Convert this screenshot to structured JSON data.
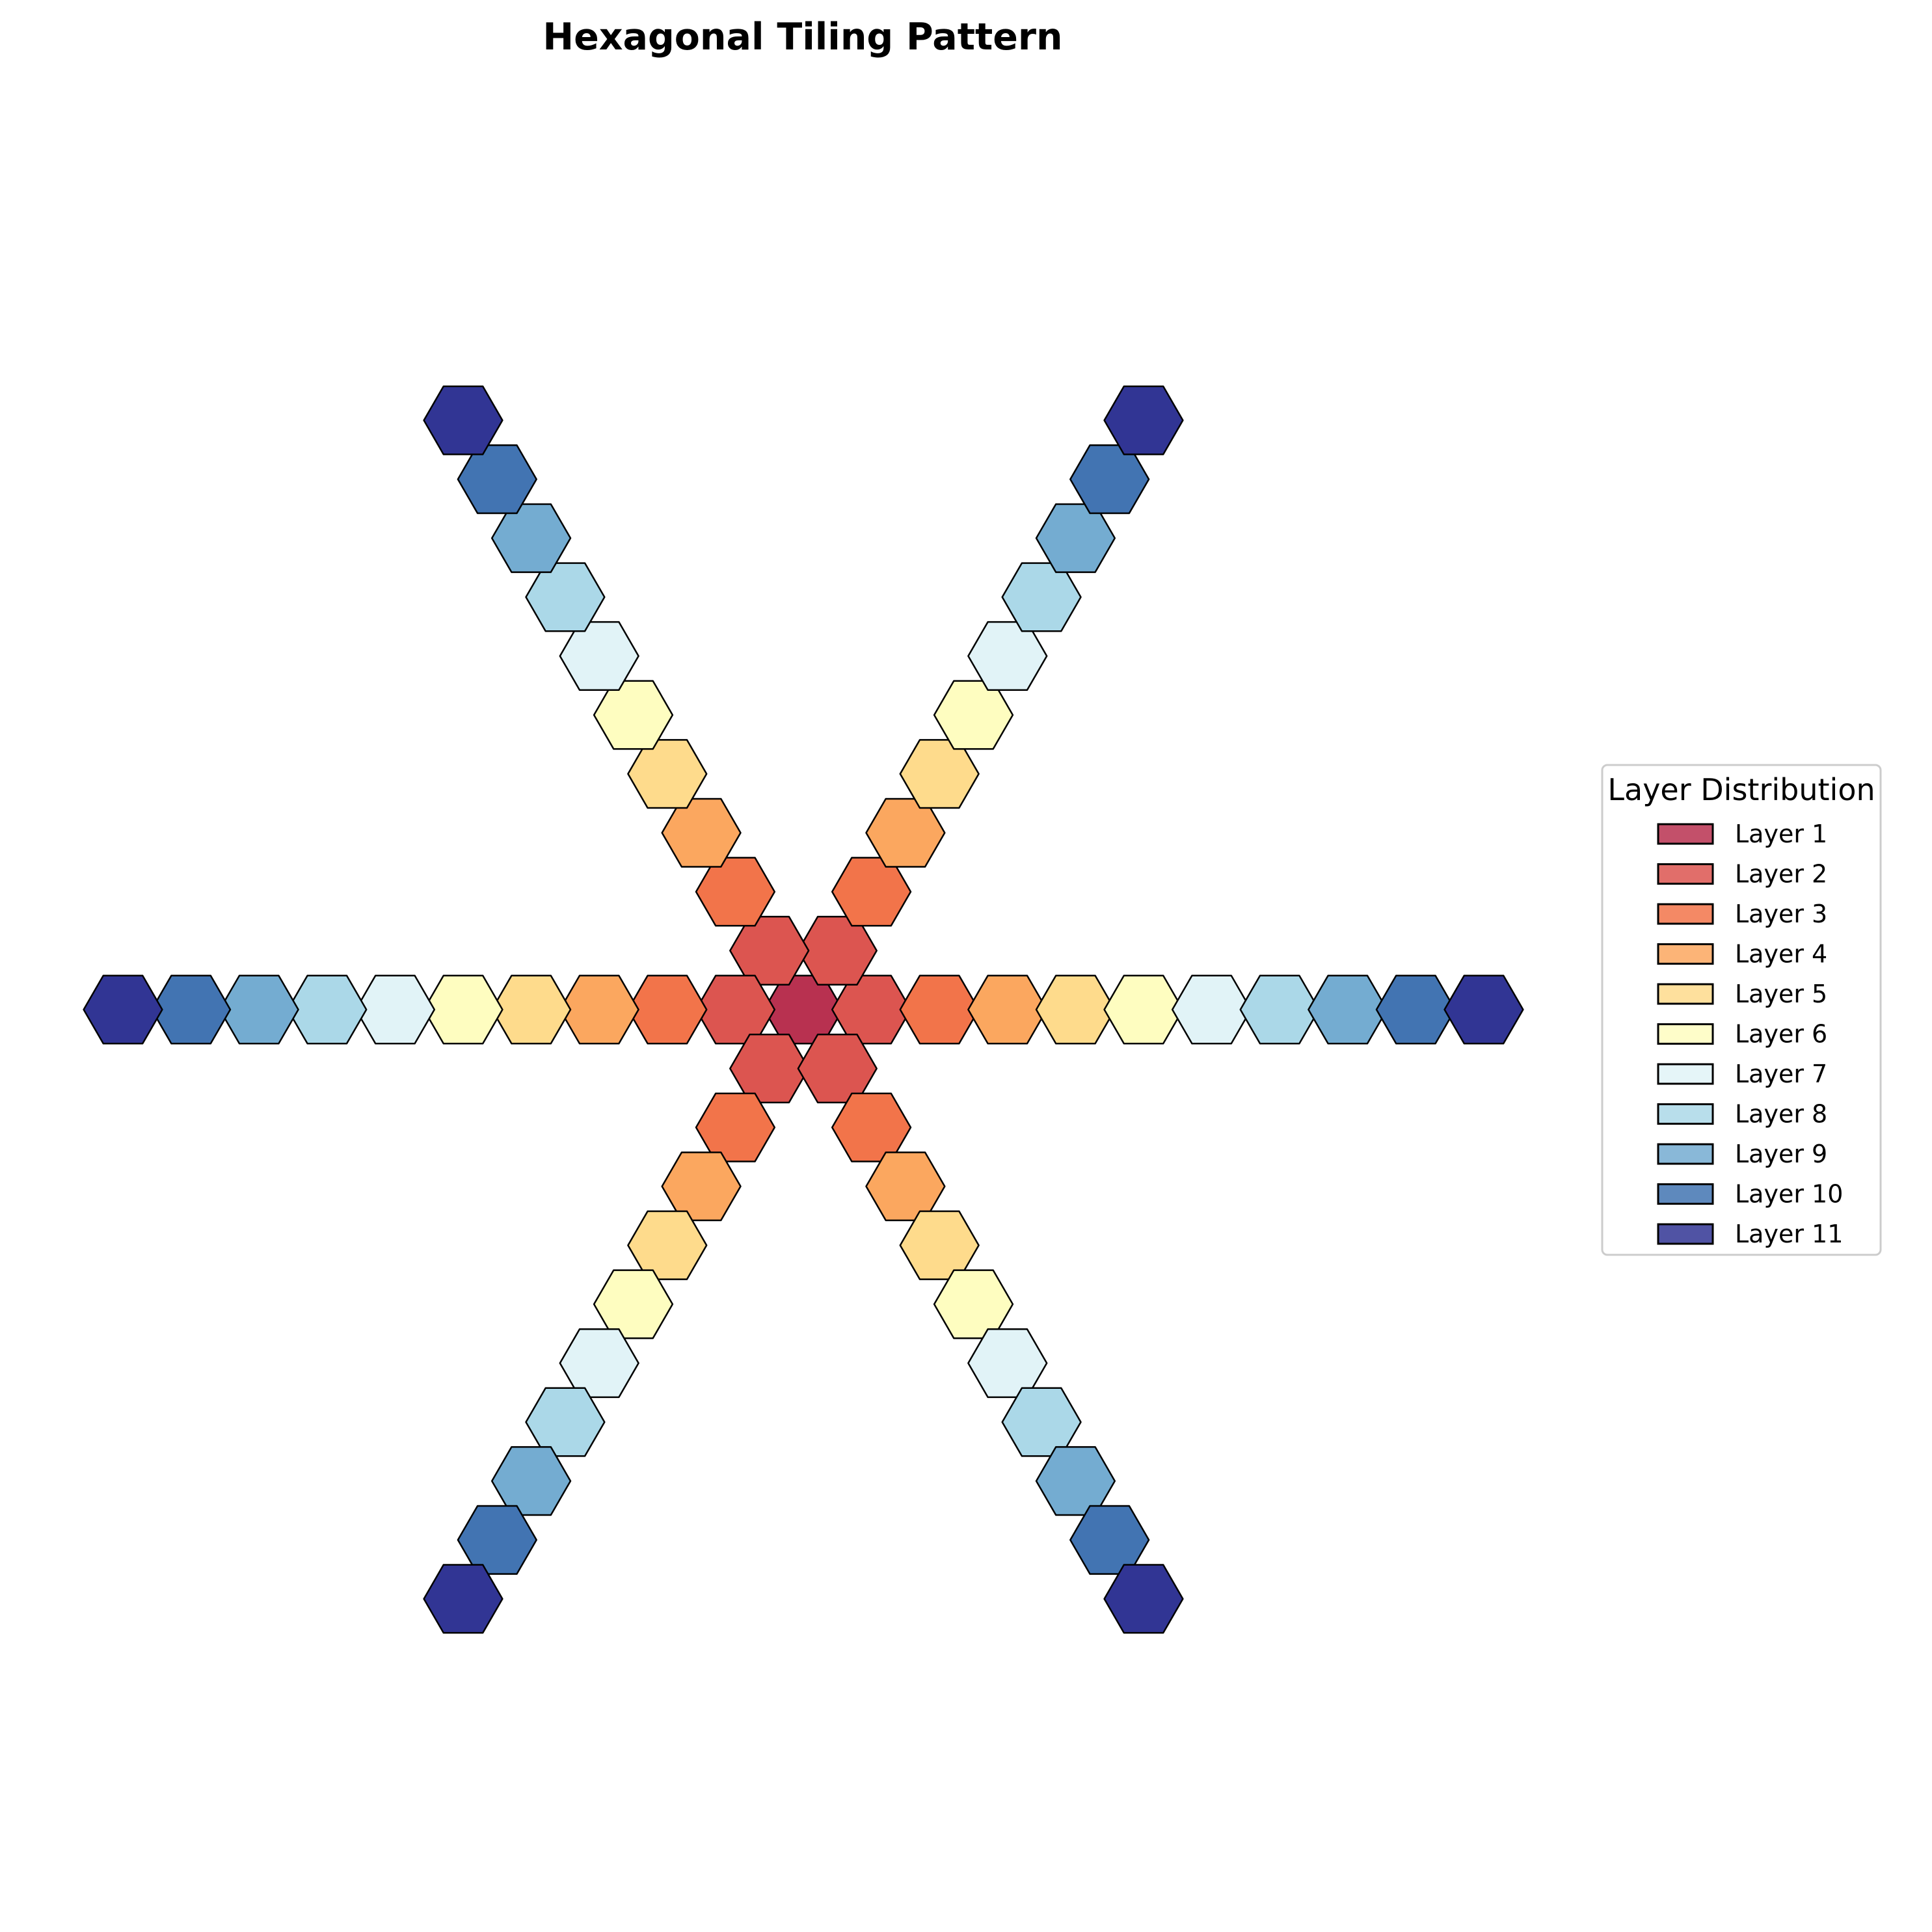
{
  "chart_data": {
    "type": "other",
    "title": "Hexagonal Tiling Pattern",
    "arms": [
      {
        "direction": "right",
        "angle_deg": 0
      },
      {
        "direction": "upper-right",
        "angle_deg": 60
      },
      {
        "direction": "upper-left",
        "angle_deg": 120
      },
      {
        "direction": "left",
        "angle_deg": 180
      },
      {
        "direction": "lower-left",
        "angle_deg": 240
      },
      {
        "direction": "lower-right",
        "angle_deg": 300
      }
    ],
    "hexagons_per_arm_beyond_center": 10,
    "center_layer": 1,
    "legend": {
      "title": "Layer Distribution",
      "placement": "center-right",
      "entries": [
        {
          "label": "Layer 1",
          "color": "#b83150"
        },
        {
          "label": "Layer 2",
          "color": "#dc5550"
        },
        {
          "label": "Layer 3",
          "color": "#f2744a"
        },
        {
          "label": "Layer 4",
          "color": "#fba75f"
        },
        {
          "label": "Layer 5",
          "color": "#fedb8c"
        },
        {
          "label": "Layer 6",
          "color": "#fefdc0"
        },
        {
          "label": "Layer 7",
          "color": "#e1f3f7"
        },
        {
          "label": "Layer 8",
          "color": "#abd8e8"
        },
        {
          "label": "Layer 9",
          "color": "#74acd1"
        },
        {
          "label": "Layer 10",
          "color": "#4274b2"
        },
        {
          "label": "Layer 11",
          "color": "#313594"
        }
      ]
    },
    "edge_color": "#000000",
    "grid": false,
    "axes_visible": false
  }
}
